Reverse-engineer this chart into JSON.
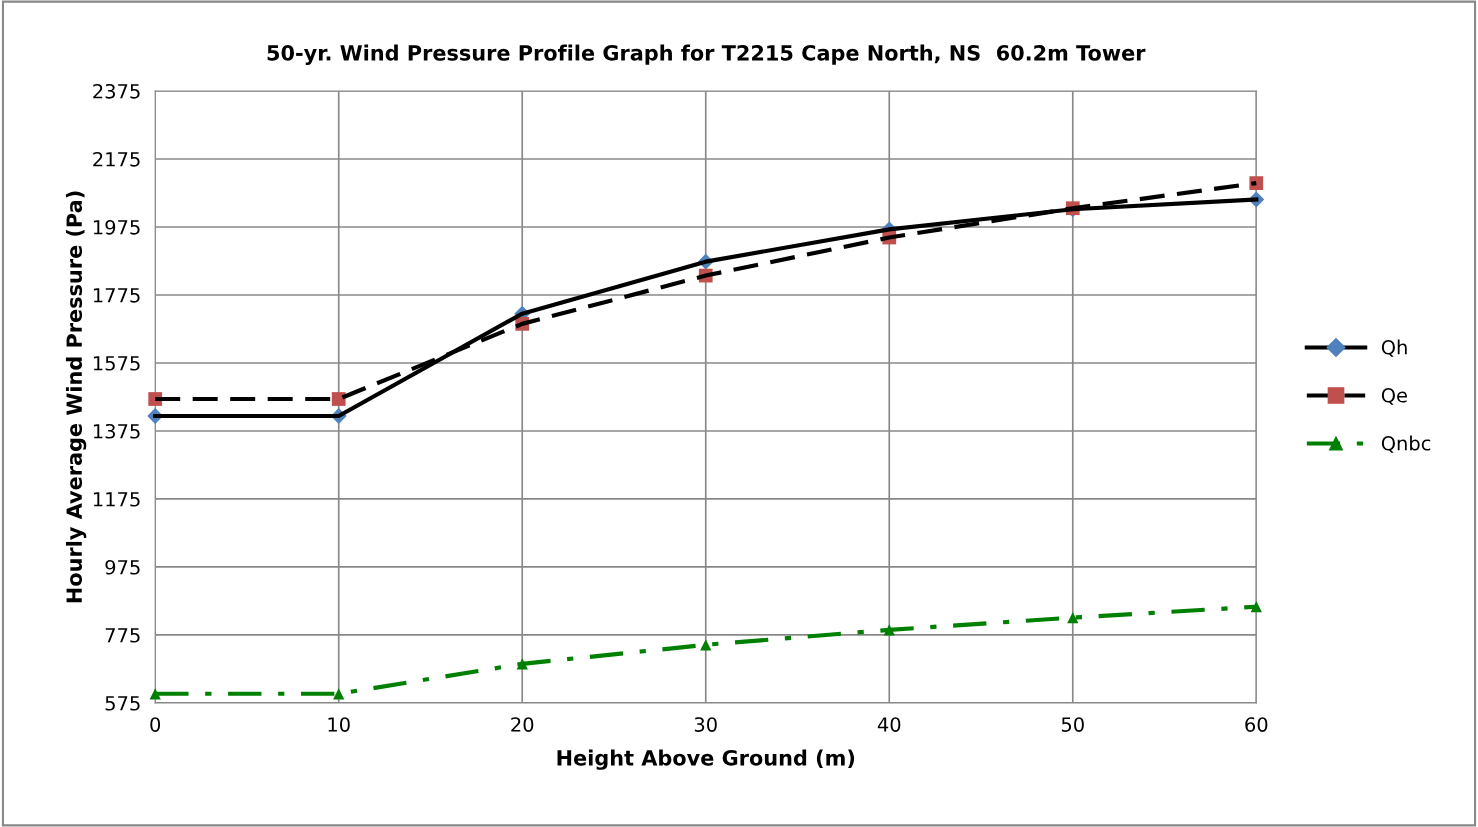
{
  "chart_data": {
    "type": "line",
    "title": "50-yr. Wind Pressure Profile Graph for T2215 Cape North, NS  60.2m Tower",
    "xlabel": "Height Above Ground (m)",
    "ylabel": "Hourly Average Wind Pressure (Pa)",
    "x": [
      0,
      10,
      20,
      30,
      40,
      50,
      60
    ],
    "series": [
      {
        "name": "Qh",
        "color": "#000000",
        "colors": [
          "#4f81bd",
          "#4f81bd",
          "#4f81bd",
          "#4f81bd",
          "#4f81bd",
          "#4f81bd",
          "#4f81bd"
        ],
        "marker": "diamond",
        "line_style": "solid",
        "values": [
          1419,
          1419,
          1720,
          1873,
          1968,
          2027,
          2056
        ]
      },
      {
        "name": "Qe",
        "color": "#000000",
        "colors": [
          "#c0504d",
          "#c0504d",
          "#c0504d",
          "#c0504d",
          "#c0504d",
          "#c0504d",
          "#c0504d"
        ],
        "marker": "square",
        "line_style": "dashed",
        "values": [
          1469,
          1469,
          1690,
          1832,
          1944,
          2030,
          2104
        ]
      },
      {
        "name": "Qnbc",
        "color": "#008000",
        "colors": [
          "#008000",
          "#008000",
          "#008000",
          "#008000",
          "#008000",
          "#008000",
          "#008000"
        ],
        "marker": "triangle",
        "line_style": "dashdot",
        "values": [
          602,
          602,
          690,
          746,
          790,
          826,
          858
        ]
      }
    ],
    "xlim": [
      0,
      60
    ],
    "xticks": [
      0,
      10,
      20,
      30,
      40,
      50,
      60
    ],
    "ylim": [
      575,
      2375
    ],
    "yticks": [
      575,
      775,
      975,
      1175,
      1375,
      1575,
      1775,
      1975,
      2175,
      2375
    ],
    "grid": true,
    "legend": "right"
  }
}
